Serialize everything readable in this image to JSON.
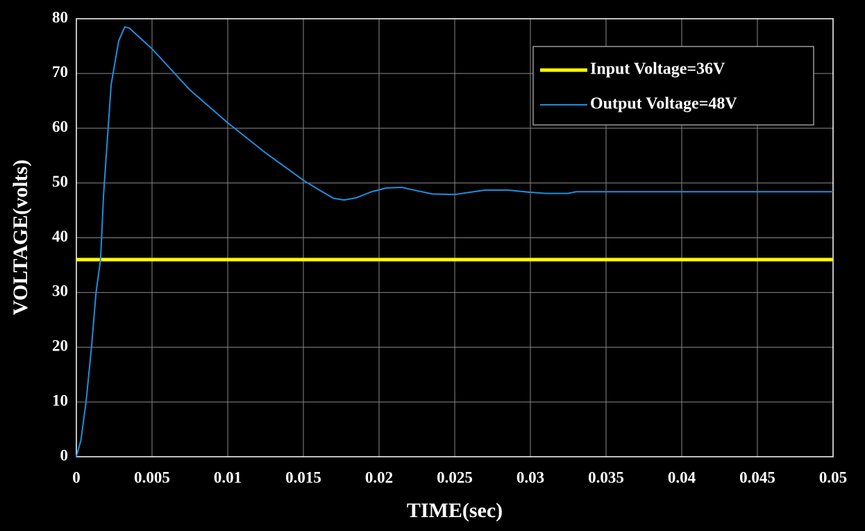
{
  "chart_data": {
    "type": "line",
    "xlabel": "TIME(sec)",
    "ylabel": "VOLTAGE(volts)",
    "x": [
      0,
      0.0003,
      0.00064,
      0.001,
      0.0013,
      0.0016,
      0.0018,
      0.0023,
      0.0028,
      0.0032,
      0.0035,
      0.005,
      0.0075,
      0.01,
      0.0125,
      0.015,
      0.016,
      0.017,
      0.0177,
      0.0185,
      0.0195,
      0.0205,
      0.0215,
      0.0225,
      0.0235,
      0.025,
      0.026,
      0.027,
      0.0285,
      0.03,
      0.031,
      0.0325,
      0.033,
      0.04,
      0.05
    ],
    "series": [
      {
        "name": "Input Voltage=36V",
        "color": "#ffff00",
        "width": 5,
        "values": [
          36,
          36,
          36,
          36,
          36,
          36,
          36,
          36,
          36,
          36,
          36,
          36,
          36,
          36,
          36,
          36,
          36,
          36,
          36,
          36,
          36,
          36,
          36,
          36,
          36,
          36,
          36,
          36,
          36,
          36,
          36,
          36,
          36,
          36,
          36
        ]
      },
      {
        "name": "Output Voltage=48V",
        "color": "#1e8fe0",
        "width": 2,
        "values": [
          0,
          3,
          10,
          20,
          30,
          36,
          48,
          68,
          76,
          78.5,
          78.3,
          74.5,
          67,
          61,
          55.5,
          50.5,
          48.8,
          47.2,
          46.9,
          47.3,
          48.4,
          49.1,
          49.2,
          48.6,
          48,
          47.9,
          48.3,
          48.7,
          48.7,
          48.3,
          48.1,
          48.1,
          48.4,
          48.4,
          48.4
        ]
      }
    ],
    "xlim": [
      0,
      0.05
    ],
    "ylim": [
      0,
      80
    ],
    "xticks": [
      0,
      0.005,
      0.01,
      0.015,
      0.02,
      0.025,
      0.03,
      0.035,
      0.04,
      0.045,
      0.05
    ],
    "yticks": [
      0,
      10,
      20,
      30,
      40,
      50,
      60,
      70,
      80
    ],
    "grid": true,
    "legend": "upper-right"
  }
}
